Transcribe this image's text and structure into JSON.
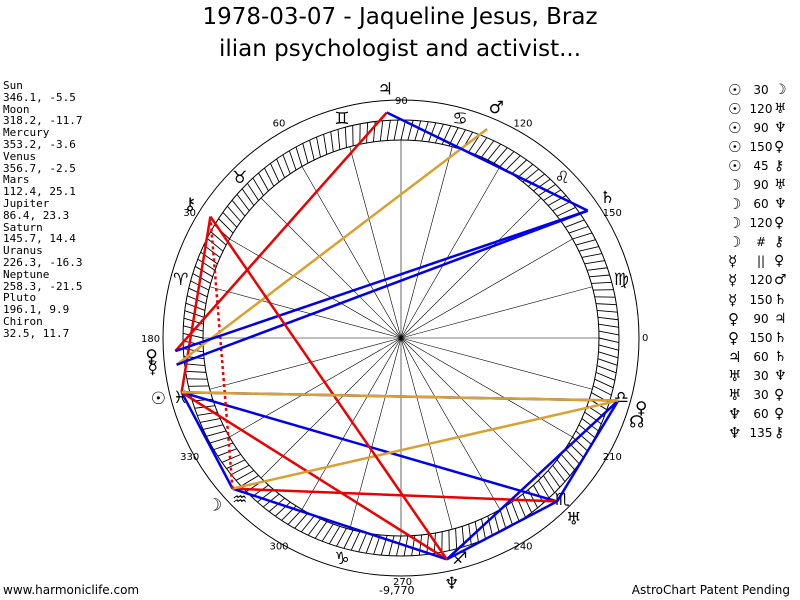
{
  "title_line1": "1978-03-07 - Jaqueline Jesus, Braz",
  "title_line2": "ilian psychologist and activist...",
  "planets": [
    {
      "name": "Sun",
      "value": "346.1, -5.5"
    },
    {
      "name": "Moon",
      "value": "318.2, -11.7"
    },
    {
      "name": "Mercury",
      "value": "353.2, -3.6"
    },
    {
      "name": "Venus",
      "value": "356.7, -2.5"
    },
    {
      "name": "Mars",
      "value": "112.4, 25.1"
    },
    {
      "name": "Jupiter",
      "value": "86.4, 23.3"
    },
    {
      "name": "Saturn",
      "value": "145.7, 14.4"
    },
    {
      "name": "Uranus",
      "value": "226.3, -16.3"
    },
    {
      "name": "Neptune",
      "value": "258.3, -21.5"
    },
    {
      "name": "Pluto",
      "value": "196.1, 9.9"
    },
    {
      "name": "Chiron",
      "value": "32.5, 11.7"
    }
  ],
  "aspects": [
    {
      "p1": "☉",
      "angle": "30",
      "p2": "☽"
    },
    {
      "p1": "☉",
      "angle": "120",
      "p2": "♅"
    },
    {
      "p1": "☉",
      "angle": "90",
      "p2": "♆"
    },
    {
      "p1": "☉",
      "angle": "150",
      "p2": "♀"
    },
    {
      "p1": "☉",
      "angle": "45",
      "p2": "⚷"
    },
    {
      "p1": "☽",
      "angle": "90",
      "p2": "♅"
    },
    {
      "p1": "☽",
      "angle": "60",
      "p2": "♆"
    },
    {
      "p1": "☽",
      "angle": "120",
      "p2": "♀"
    },
    {
      "p1": "☽",
      "angle": "#",
      "p2": "⚷"
    },
    {
      "p1": "☿",
      "angle": "||",
      "p2": "♀"
    },
    {
      "p1": "☿",
      "angle": "120",
      "p2": "♂"
    },
    {
      "p1": "☿",
      "angle": "150",
      "p2": "♄"
    },
    {
      "p1": "♀",
      "angle": "90",
      "p2": "♃"
    },
    {
      "p1": "♀",
      "angle": "150",
      "p2": "♄"
    },
    {
      "p1": "♃",
      "angle": "60",
      "p2": "♄"
    },
    {
      "p1": "♅",
      "angle": "30",
      "p2": "♆"
    },
    {
      "p1": "♅",
      "angle": "30",
      "p2": "♀"
    },
    {
      "p1": "♆",
      "angle": "60",
      "p2": "♀"
    },
    {
      "p1": "♆",
      "angle": "135",
      "p2": "⚷"
    }
  ],
  "chart_data": {
    "type": "astrology-wheel",
    "degree_labels": [
      {
        "text": "0",
        "deg": 0
      },
      {
        "text": "30",
        "deg": 30
      },
      {
        "text": "60",
        "deg": 60
      },
      {
        "text": "90",
        "deg": 90
      },
      {
        "text": "120",
        "deg": 120
      },
      {
        "text": "150",
        "deg": 150
      },
      {
        "text": "180",
        "deg": 180
      },
      {
        "text": "210",
        "deg": 210
      },
      {
        "text": "240",
        "deg": 240
      },
      {
        "text": "270",
        "deg": 270
      },
      {
        "text": "300",
        "deg": 300
      },
      {
        "text": "330",
        "deg": 330
      }
    ],
    "bottom_value": "-9,770",
    "signs": [
      {
        "glyph": "♈",
        "deg": 15
      },
      {
        "glyph": "♉",
        "deg": 45
      },
      {
        "glyph": "♊",
        "deg": 75
      },
      {
        "glyph": "♋",
        "deg": 105
      },
      {
        "glyph": "♌",
        "deg": 135
      },
      {
        "glyph": "♍",
        "deg": 165
      },
      {
        "glyph": "♎",
        "deg": 195
      },
      {
        "glyph": "♏",
        "deg": 225
      },
      {
        "glyph": "♐",
        "deg": 255
      },
      {
        "glyph": "♑",
        "deg": 285
      },
      {
        "glyph": "♒",
        "deg": 315
      },
      {
        "glyph": "♓",
        "deg": 345
      }
    ],
    "bodies": [
      {
        "name": "Sun",
        "glyph": "☉",
        "deg": 346.1,
        "label_deg": 346.1
      },
      {
        "name": "Moon",
        "glyph": "☽",
        "deg": 318.2,
        "label_deg": 318.2
      },
      {
        "name": "Mercury",
        "glyph": "☿",
        "deg": 353.2,
        "label_deg": 353.2
      },
      {
        "name": "Venus",
        "glyph": "♀",
        "deg": 356.7,
        "label_deg": 356.0
      },
      {
        "name": "Mars",
        "glyph": "♂",
        "deg": 112.4,
        "label_deg": 112.4
      },
      {
        "name": "Jupiter",
        "glyph": "♃",
        "deg": 86.4,
        "label_deg": 86.4
      },
      {
        "name": "Saturn",
        "glyph": "♄",
        "deg": 145.7,
        "label_deg": 145.7
      },
      {
        "name": "Uranus",
        "glyph": "♅",
        "deg": 226.3,
        "label_deg": 226.3
      },
      {
        "name": "Neptune",
        "glyph": "♆",
        "deg": 258.3,
        "label_deg": 258.3
      },
      {
        "name": "Pluto",
        "glyph": "♀",
        "deg": 196.1,
        "label_deg": 196.1
      },
      {
        "name": "Chiron",
        "glyph": "⚷",
        "deg": 32.5,
        "label_deg": 32.5
      },
      {
        "name": "Node",
        "glyph": "☊",
        "deg": 195.0,
        "label_deg": 199.5
      }
    ],
    "aspect_lines": [
      {
        "from": 346.1,
        "to": 318.2,
        "color": "#0000ee",
        "style": "solid"
      },
      {
        "from": 346.1,
        "to": 226.3,
        "color": "#0000ee",
        "style": "solid"
      },
      {
        "from": 346.1,
        "to": 258.3,
        "color": "#ee0000",
        "style": "solid"
      },
      {
        "from": 346.1,
        "to": 196.1,
        "color": "#0000ee",
        "style": "solid"
      },
      {
        "from": 346.1,
        "to": 32.5,
        "color": "#ee0000",
        "style": "solid"
      },
      {
        "from": 318.2,
        "to": 226.3,
        "color": "#ee0000",
        "style": "solid"
      },
      {
        "from": 318.2,
        "to": 258.3,
        "color": "#0000ee",
        "style": "solid"
      },
      {
        "from": 318.2,
        "to": 196.1,
        "color": "#daa030",
        "style": "solid"
      },
      {
        "from": 318.2,
        "to": 32.5,
        "color": "#ee0000",
        "style": "dotted"
      },
      {
        "from": 353.2,
        "to": 112.4,
        "color": "#daa030",
        "style": "solid"
      },
      {
        "from": 353.2,
        "to": 145.7,
        "color": "#0000ee",
        "style": "solid"
      },
      {
        "from": 356.7,
        "to": 86.4,
        "color": "#ee0000",
        "style": "solid"
      },
      {
        "from": 356.7,
        "to": 145.7,
        "color": "#0000ee",
        "style": "solid"
      },
      {
        "from": 86.4,
        "to": 145.7,
        "color": "#0000ee",
        "style": "solid"
      },
      {
        "from": 226.3,
        "to": 258.3,
        "color": "#0000ee",
        "style": "solid"
      },
      {
        "from": 226.3,
        "to": 196.1,
        "color": "#0000ee",
        "style": "solid"
      },
      {
        "from": 258.3,
        "to": 196.1,
        "color": "#0000ee",
        "style": "solid"
      },
      {
        "from": 258.3,
        "to": 32.5,
        "color": "#ee0000",
        "style": "solid"
      },
      {
        "from": 346.1,
        "to": 196.1,
        "color": "#daa030",
        "style": "solid"
      }
    ]
  },
  "footer_left": "www.harmoniclife.com",
  "footer_right": "AstroChart Patent Pending"
}
